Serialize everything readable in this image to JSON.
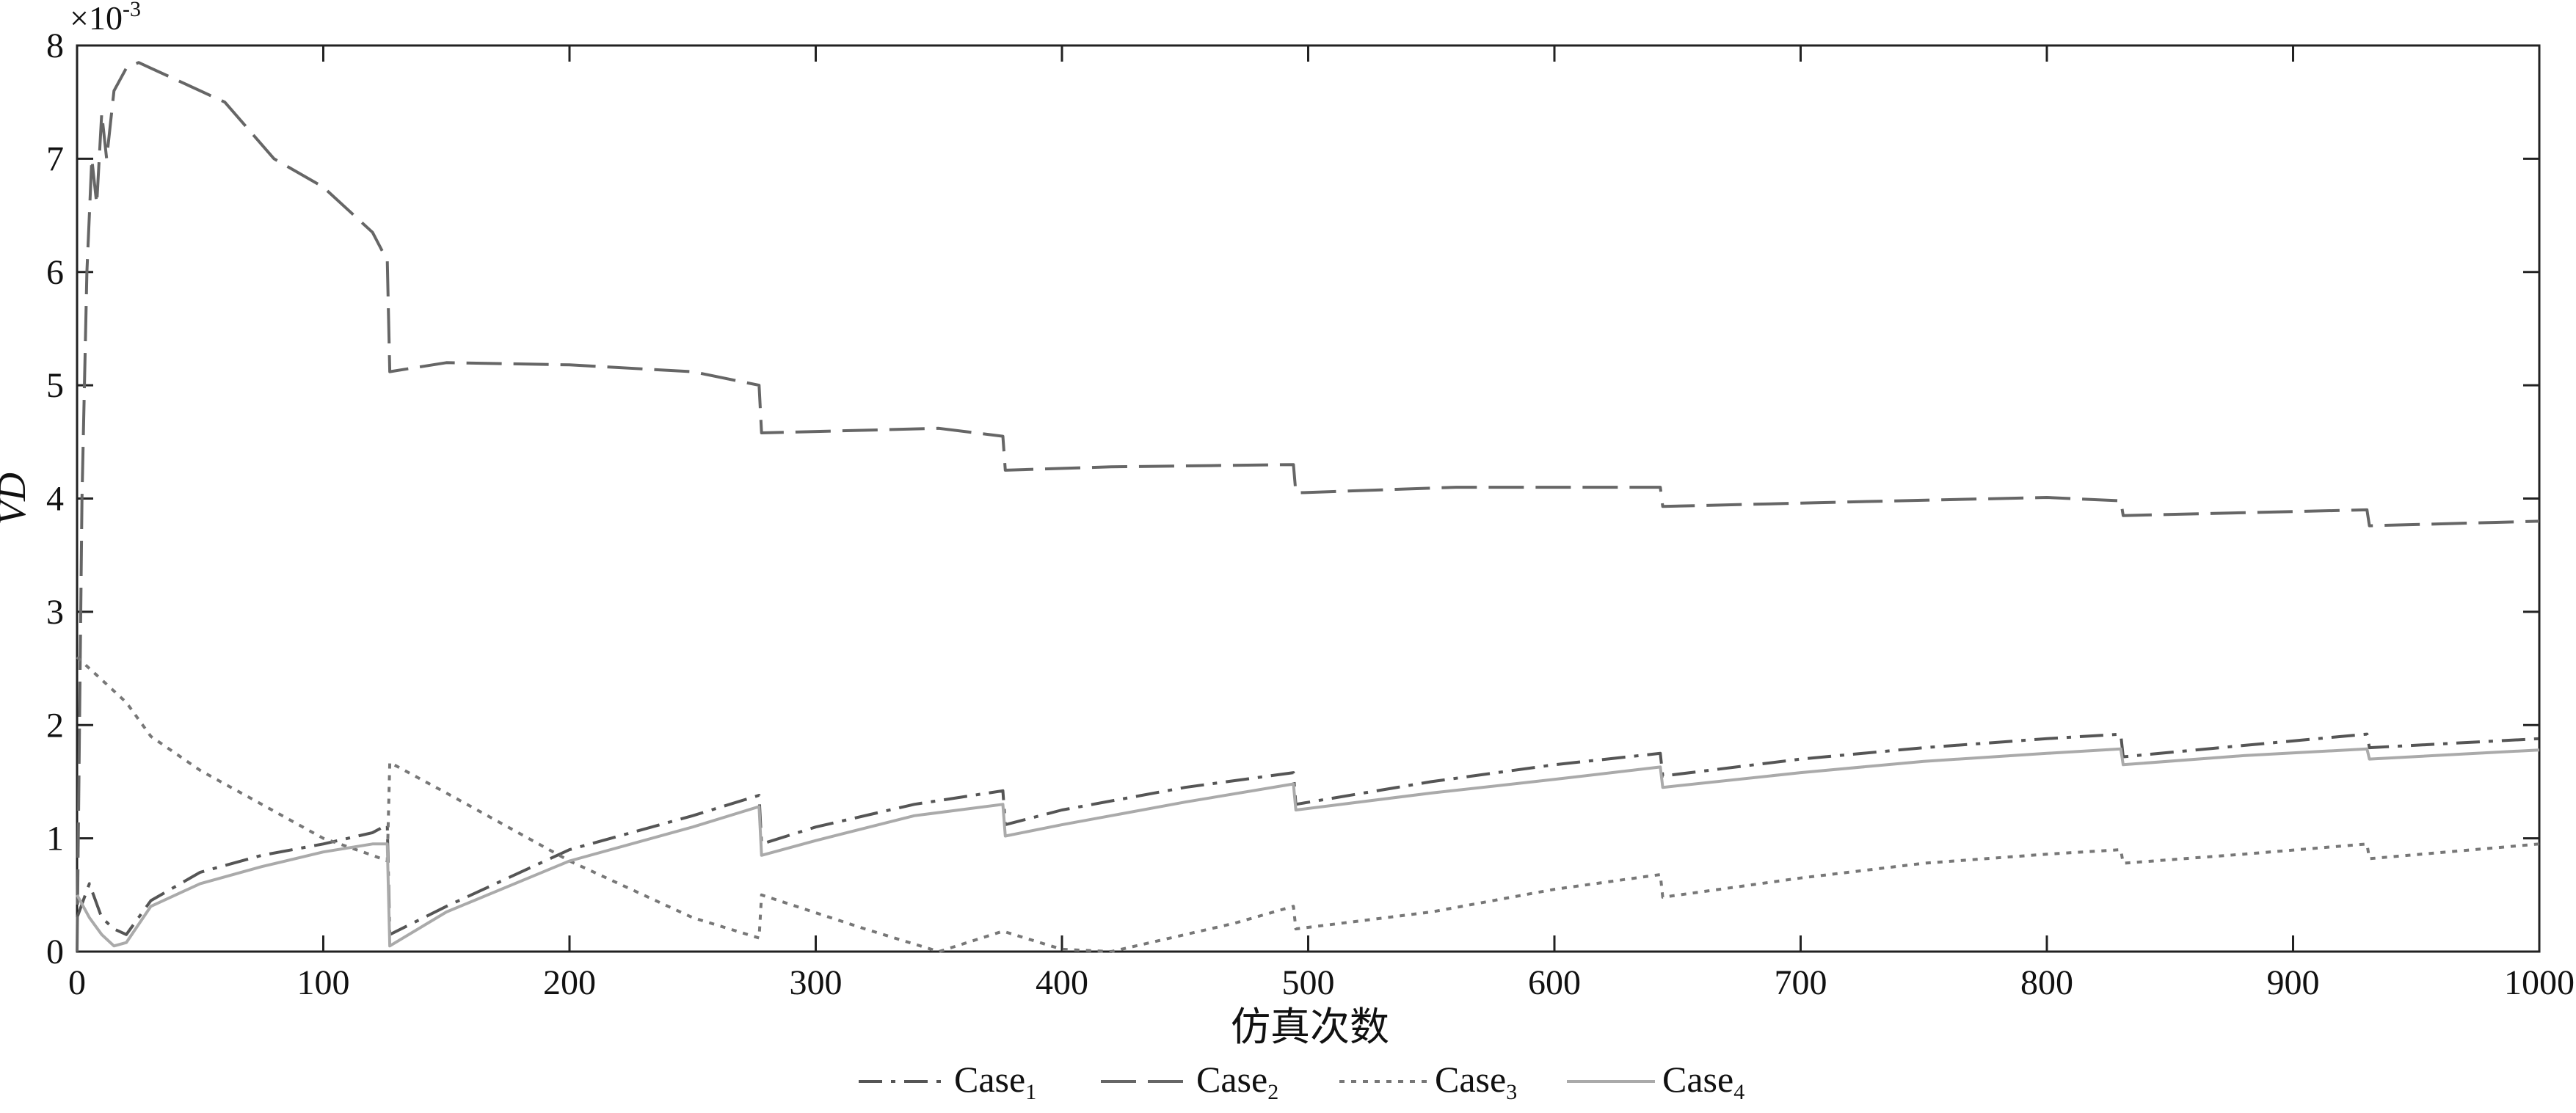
{
  "chart_data": {
    "type": "line",
    "xlabel": "仿真次数",
    "ylabel": "VD",
    "y_multiplier": {
      "base": "×10",
      "exponent": "-3"
    },
    "xlim": [
      0,
      1000
    ],
    "ylim": [
      0,
      8
    ],
    "xticks": [
      "0",
      "100",
      "200",
      "300",
      "400",
      "500",
      "600",
      "700",
      "800",
      "900",
      "1000"
    ],
    "yticks": [
      "0",
      "1",
      "2",
      "3",
      "4",
      "5",
      "6",
      "7",
      "8"
    ],
    "grid": false,
    "legend_position": "bottom-center",
    "series": [
      {
        "name": "Case",
        "sub": "1",
        "style": "dashdot",
        "color": "#555555",
        "points": [
          [
            0,
            0.3
          ],
          [
            5,
            0.6
          ],
          [
            10,
            0.3
          ],
          [
            15,
            0.2
          ],
          [
            20,
            0.15
          ],
          [
            30,
            0.45
          ],
          [
            50,
            0.7
          ],
          [
            75,
            0.85
          ],
          [
            100,
            0.95
          ],
          [
            120,
            1.05
          ],
          [
            126,
            1.12
          ],
          [
            127,
            0.15
          ],
          [
            150,
            0.4
          ],
          [
            200,
            0.9
          ],
          [
            250,
            1.2
          ],
          [
            277,
            1.38
          ],
          [
            278,
            0.95
          ],
          [
            300,
            1.1
          ],
          [
            340,
            1.3
          ],
          [
            376,
            1.42
          ],
          [
            377,
            1.12
          ],
          [
            400,
            1.25
          ],
          [
            450,
            1.45
          ],
          [
            494,
            1.58
          ],
          [
            495,
            1.3
          ],
          [
            550,
            1.5
          ],
          [
            600,
            1.65
          ],
          [
            643,
            1.75
          ],
          [
            644,
            1.55
          ],
          [
            700,
            1.7
          ],
          [
            750,
            1.8
          ],
          [
            800,
            1.88
          ],
          [
            830,
            1.92
          ],
          [
            831,
            1.72
          ],
          [
            880,
            1.82
          ],
          [
            930,
            1.92
          ],
          [
            931,
            1.8
          ],
          [
            1000,
            1.88
          ]
        ]
      },
      {
        "name": "Case",
        "sub": "2",
        "style": "longdash",
        "color": "#666666",
        "points": [
          [
            0,
            0
          ],
          [
            2,
            4.0
          ],
          [
            4,
            6.0
          ],
          [
            6,
            7.0
          ],
          [
            8,
            6.6
          ],
          [
            10,
            7.4
          ],
          [
            12,
            7.0
          ],
          [
            15,
            7.6
          ],
          [
            20,
            7.8
          ],
          [
            25,
            7.85
          ],
          [
            30,
            7.8
          ],
          [
            40,
            7.7
          ],
          [
            60,
            7.5
          ],
          [
            80,
            7.0
          ],
          [
            100,
            6.75
          ],
          [
            120,
            6.35
          ],
          [
            126,
            6.1
          ],
          [
            127,
            5.12
          ],
          [
            150,
            5.2
          ],
          [
            200,
            5.18
          ],
          [
            250,
            5.12
          ],
          [
            277,
            5.0
          ],
          [
            278,
            4.58
          ],
          [
            350,
            4.62
          ],
          [
            376,
            4.55
          ],
          [
            377,
            4.25
          ],
          [
            420,
            4.28
          ],
          [
            494,
            4.3
          ],
          [
            495,
            4.05
          ],
          [
            560,
            4.1
          ],
          [
            643,
            4.1
          ],
          [
            644,
            3.93
          ],
          [
            720,
            3.97
          ],
          [
            800,
            4.01
          ],
          [
            830,
            3.98
          ],
          [
            831,
            3.85
          ],
          [
            930,
            3.9
          ],
          [
            931,
            3.76
          ],
          [
            1000,
            3.8
          ]
        ]
      },
      {
        "name": "Case",
        "sub": "3",
        "style": "dotted",
        "color": "#777777",
        "points": [
          [
            0,
            2.6
          ],
          [
            5,
            2.5
          ],
          [
            10,
            2.4
          ],
          [
            20,
            2.2
          ],
          [
            30,
            1.9
          ],
          [
            50,
            1.6
          ],
          [
            75,
            1.3
          ],
          [
            100,
            1.0
          ],
          [
            120,
            0.85
          ],
          [
            126,
            0.8
          ],
          [
            127,
            1.67
          ],
          [
            150,
            1.4
          ],
          [
            200,
            0.8
          ],
          [
            250,
            0.3
          ],
          [
            277,
            0.12
          ],
          [
            278,
            0.5
          ],
          [
            320,
            0.2
          ],
          [
            350,
            0.0
          ],
          [
            376,
            0.18
          ],
          [
            400,
            0.02
          ],
          [
            420,
            0.0
          ],
          [
            470,
            0.25
          ],
          [
            494,
            0.4
          ],
          [
            495,
            0.2
          ],
          [
            550,
            0.35
          ],
          [
            600,
            0.55
          ],
          [
            643,
            0.68
          ],
          [
            644,
            0.48
          ],
          [
            700,
            0.65
          ],
          [
            750,
            0.78
          ],
          [
            800,
            0.86
          ],
          [
            830,
            0.9
          ],
          [
            831,
            0.78
          ],
          [
            880,
            0.86
          ],
          [
            930,
            0.95
          ],
          [
            931,
            0.82
          ],
          [
            1000,
            0.95
          ]
        ]
      },
      {
        "name": "Case",
        "sub": "4",
        "style": "solid",
        "color": "#aaaaaa",
        "points": [
          [
            0,
            0.5
          ],
          [
            5,
            0.3
          ],
          [
            10,
            0.15
          ],
          [
            15,
            0.05
          ],
          [
            20,
            0.08
          ],
          [
            30,
            0.4
          ],
          [
            50,
            0.6
          ],
          [
            75,
            0.75
          ],
          [
            100,
            0.88
          ],
          [
            120,
            0.95
          ],
          [
            126,
            0.95
          ],
          [
            127,
            0.05
          ],
          [
            150,
            0.35
          ],
          [
            200,
            0.8
          ],
          [
            250,
            1.1
          ],
          [
            277,
            1.28
          ],
          [
            278,
            0.85
          ],
          [
            300,
            0.98
          ],
          [
            340,
            1.2
          ],
          [
            376,
            1.3
          ],
          [
            377,
            1.02
          ],
          [
            400,
            1.12
          ],
          [
            450,
            1.32
          ],
          [
            494,
            1.48
          ],
          [
            495,
            1.25
          ],
          [
            550,
            1.4
          ],
          [
            600,
            1.52
          ],
          [
            643,
            1.63
          ],
          [
            644,
            1.45
          ],
          [
            700,
            1.58
          ],
          [
            750,
            1.68
          ],
          [
            800,
            1.75
          ],
          [
            830,
            1.79
          ],
          [
            831,
            1.65
          ],
          [
            880,
            1.73
          ],
          [
            930,
            1.79
          ],
          [
            931,
            1.7
          ],
          [
            1000,
            1.78
          ]
        ]
      }
    ]
  }
}
